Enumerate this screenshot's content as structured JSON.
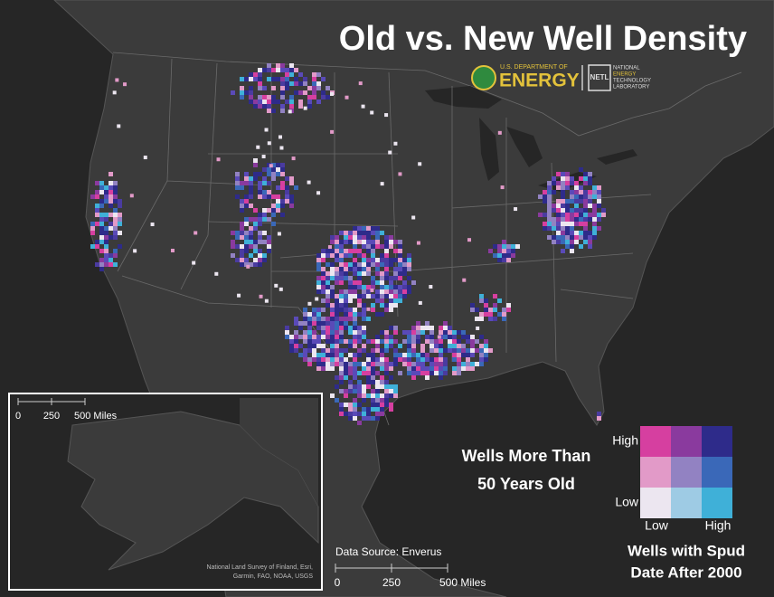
{
  "title": "Old vs. New Well Density",
  "logos": {
    "doe": {
      "line1": "U.S. DEPARTMENT OF",
      "line2": "ENERGY"
    },
    "netl": {
      "mark": "NETL",
      "line1": "NATIONAL",
      "line2": "ENERGY",
      "line3": "TECHNOLOGY",
      "line4": "LABORATORY"
    }
  },
  "legend": {
    "y_title": [
      "Wells More Than",
      "50 Years Old"
    ],
    "y_labels": [
      "High",
      "Low"
    ],
    "x_labels": [
      "Low",
      "High"
    ],
    "x_title": [
      "Wells with Spud",
      "Date After 2000"
    ]
  },
  "inset": {
    "scale_labels": [
      "0",
      "250",
      "500 Miles"
    ],
    "attribution": [
      "National Land Survey of Finland, Esri,",
      "Garmin, FAO, NOAA, USGS"
    ]
  },
  "data_source": "Data Source: Enverus",
  "scale_labels": [
    "0",
    "250",
    "500 Miles"
  ]
}
